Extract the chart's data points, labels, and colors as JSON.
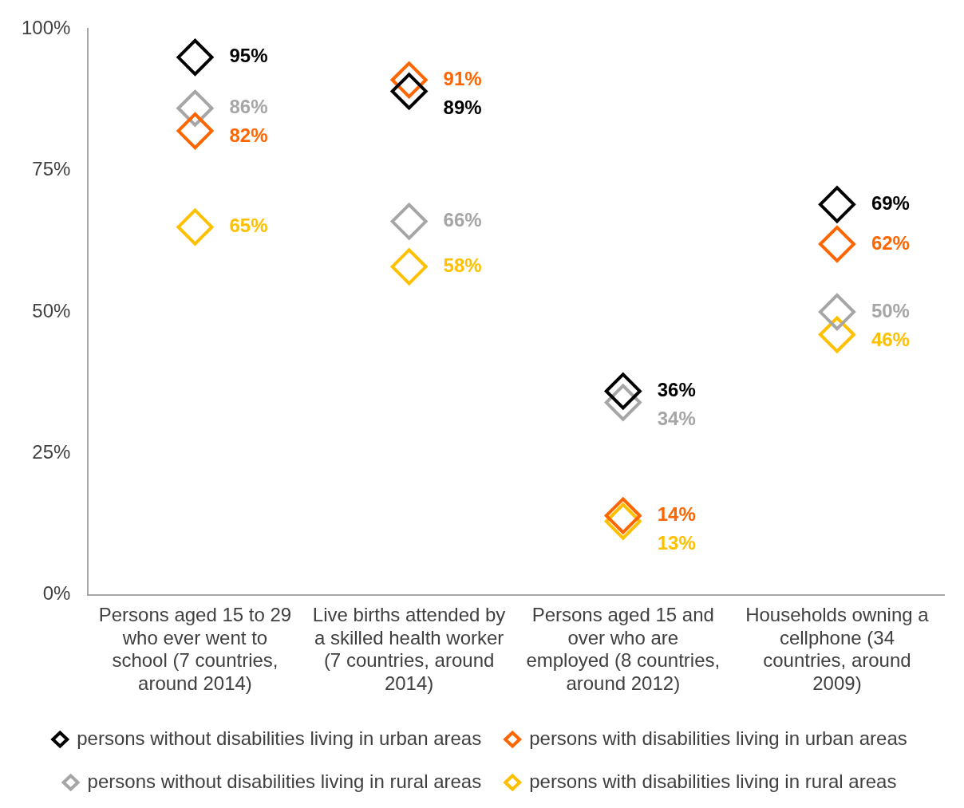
{
  "chart_data": {
    "type": "scatter",
    "categories": [
      "Persons aged 15 to 29 who ever went to school (7 countries, around 2014)",
      "Live births attended by a skilled health worker (7 countries, around 2014)",
      "Persons aged 15 and over who are employed (8 countries, around 2012)",
      "Households owning a cellphone (34 countries, around 2009)"
    ],
    "series": [
      {
        "name": "persons without disabilities living in urban areas",
        "color": "#000000",
        "values": [
          95,
          89,
          36,
          69
        ],
        "value_labels": [
          "95%",
          "89%",
          "36%",
          "69%"
        ]
      },
      {
        "name": "persons with disabilities living in urban areas",
        "color": "#ff6600",
        "values": [
          82,
          91,
          14,
          62
        ],
        "value_labels": [
          "82%",
          "91%",
          "14%",
          "62%"
        ]
      },
      {
        "name": "persons without disabilities living in rural areas",
        "color": "#a6a6a6",
        "values": [
          86,
          66,
          34,
          50
        ],
        "value_labels": [
          "86%",
          "66%",
          "34%",
          "50%"
        ]
      },
      {
        "name": "persons with disabilities living in rural areas",
        "color": "#ffc000",
        "values": [
          65,
          58,
          13,
          46
        ],
        "value_labels": [
          "65%",
          "58%",
          "13%",
          "46%"
        ]
      }
    ],
    "ylim": [
      0,
      100
    ],
    "yticks": [
      {
        "value": 0,
        "label": "0%"
      },
      {
        "value": 25,
        "label": "25%"
      },
      {
        "value": 50,
        "label": "50%"
      },
      {
        "value": 75,
        "label": "75%"
      },
      {
        "value": 100,
        "label": "100%"
      }
    ],
    "grid": false,
    "legend": "bottom",
    "marker": "diamond"
  }
}
